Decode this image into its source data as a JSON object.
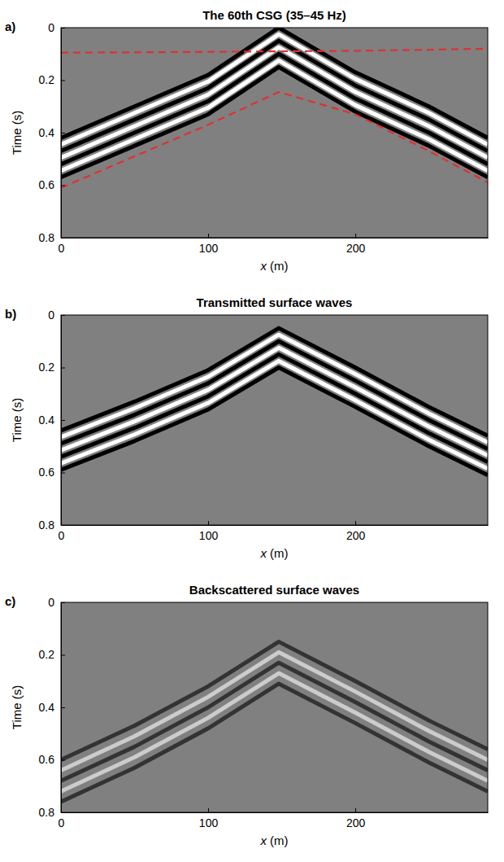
{
  "chart_data": [
    {
      "type": "line",
      "label": "a)",
      "title": "The 60th CSG (35–45 Hz)",
      "x_label": "x (m)",
      "y_label": "Time (s)",
      "xlim": [
        0,
        290
      ],
      "xticks": [
        0,
        100,
        200
      ],
      "ylim": [
        0,
        0.8
      ],
      "yticks": [
        0,
        0.2,
        0.4,
        0.6,
        0.8
      ],
      "x": [
        0,
        50,
        100,
        148,
        200,
        250,
        290
      ],
      "series": [
        {
          "color": "#000000",
          "line_style": "solid",
          "values": [
            0.42,
            0.3,
            0.18,
            0.0,
            0.17,
            0.3,
            0.42
          ]
        },
        {
          "color": "#ffffff",
          "line_style": "solid",
          "values": [
            0.445,
            0.325,
            0.205,
            0.025,
            0.195,
            0.325,
            0.445
          ]
        },
        {
          "color": "#000000",
          "line_style": "solid",
          "values": [
            0.47,
            0.35,
            0.23,
            0.05,
            0.22,
            0.35,
            0.47
          ]
        },
        {
          "color": "#ffffff",
          "line_style": "solid",
          "values": [
            0.495,
            0.375,
            0.255,
            0.075,
            0.245,
            0.375,
            0.495
          ]
        },
        {
          "color": "#000000",
          "line_style": "solid",
          "values": [
            0.52,
            0.4,
            0.28,
            0.1,
            0.27,
            0.4,
            0.52
          ]
        },
        {
          "color": "#ffffff",
          "line_style": "solid",
          "values": [
            0.545,
            0.425,
            0.305,
            0.125,
            0.295,
            0.425,
            0.545
          ]
        },
        {
          "color": "#000000",
          "line_style": "solid",
          "values": [
            0.57,
            0.45,
            0.33,
            0.15,
            0.32,
            0.45,
            0.57
          ]
        },
        {
          "color": "#e03030",
          "line_style": "dashed",
          "values": [
            0.095,
            0.094,
            0.092,
            0.09,
            0.088,
            0.084,
            0.08
          ]
        },
        {
          "color": "#e03030",
          "line_style": "dashed",
          "values": [
            0.61,
            0.49,
            0.37,
            0.245,
            0.33,
            0.47,
            0.59
          ]
        }
      ]
    },
    {
      "type": "line",
      "label": "b)",
      "title": "Transmitted surface waves",
      "x_label": "x (m)",
      "y_label": "Time (s)",
      "xlim": [
        0,
        290
      ],
      "xticks": [
        0,
        100,
        200
      ],
      "ylim": [
        0,
        0.8
      ],
      "yticks": [
        0,
        0.2,
        0.4,
        0.6,
        0.8
      ],
      "x": [
        0,
        50,
        100,
        148,
        200,
        250,
        290
      ],
      "series": [
        {
          "color": "#000000",
          "line_style": "solid",
          "values": [
            0.44,
            0.33,
            0.21,
            0.05,
            0.2,
            0.35,
            0.46
          ]
        },
        {
          "color": "#ffffff",
          "line_style": "solid",
          "values": [
            0.465,
            0.355,
            0.235,
            0.075,
            0.225,
            0.375,
            0.485
          ]
        },
        {
          "color": "#000000",
          "line_style": "solid",
          "values": [
            0.49,
            0.38,
            0.26,
            0.1,
            0.25,
            0.4,
            0.51
          ]
        },
        {
          "color": "#ffffff",
          "line_style": "solid",
          "values": [
            0.515,
            0.405,
            0.285,
            0.125,
            0.275,
            0.425,
            0.535
          ]
        },
        {
          "color": "#000000",
          "line_style": "solid",
          "values": [
            0.54,
            0.43,
            0.31,
            0.15,
            0.3,
            0.45,
            0.56
          ]
        },
        {
          "color": "#ffffff",
          "line_style": "solid",
          "values": [
            0.565,
            0.455,
            0.335,
            0.175,
            0.325,
            0.475,
            0.585
          ]
        },
        {
          "color": "#000000",
          "line_style": "solid",
          "values": [
            0.59,
            0.48,
            0.36,
            0.2,
            0.35,
            0.5,
            0.61
          ]
        }
      ]
    },
    {
      "type": "line",
      "label": "c)",
      "title": "Backscattered surface waves",
      "x_label": "x (m)",
      "y_label": "Time (s)",
      "xlim": [
        0,
        290
      ],
      "xticks": [
        0,
        100,
        200
      ],
      "ylim": [
        0,
        0.8
      ],
      "yticks": [
        0,
        0.2,
        0.4,
        0.6,
        0.8
      ],
      "x": [
        0,
        50,
        100,
        148,
        200,
        250,
        290
      ],
      "series": [
        {
          "color": "#333333",
          "line_style": "solid",
          "values": [
            0.6,
            0.47,
            0.32,
            0.15,
            0.3,
            0.45,
            0.56
          ]
        },
        {
          "color": "#cccccc",
          "line_style": "solid",
          "values": [
            0.64,
            0.51,
            0.36,
            0.19,
            0.34,
            0.49,
            0.6
          ]
        },
        {
          "color": "#333333",
          "line_style": "solid",
          "values": [
            0.68,
            0.55,
            0.4,
            0.23,
            0.38,
            0.53,
            0.64
          ]
        },
        {
          "color": "#cccccc",
          "line_style": "solid",
          "values": [
            0.72,
            0.59,
            0.44,
            0.27,
            0.42,
            0.57,
            0.68
          ]
        },
        {
          "color": "#333333",
          "line_style": "solid",
          "values": [
            0.76,
            0.63,
            0.48,
            0.31,
            0.46,
            0.61,
            0.72
          ]
        }
      ]
    }
  ]
}
